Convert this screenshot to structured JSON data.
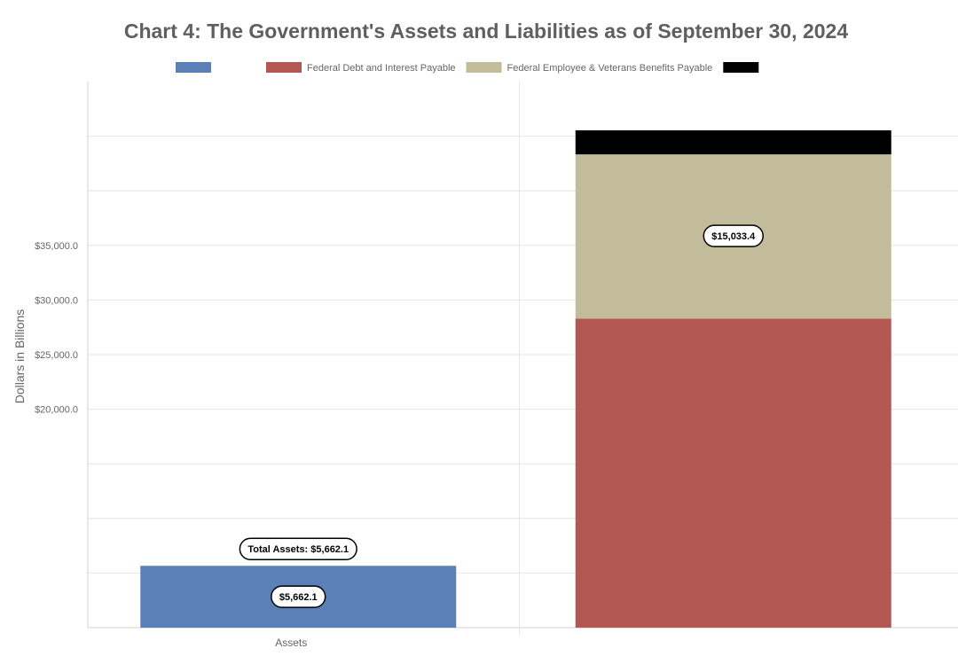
{
  "chart_data": {
    "type": "bar",
    "title": "Chart 4: The Government's Assets and Liabilities as of September 30, 2024",
    "ylabel": "Dollars in Billions",
    "xlabel": "",
    "ylim": [
      0,
      50000
    ],
    "y_ticks_shown": [
      20000,
      25000,
      30000,
      35000
    ],
    "y_tick_labels_shown": [
      "$20,000.0",
      "$25,000.0",
      "$30,000.0",
      "$35,000.0"
    ],
    "grid": true,
    "legend_position": "top",
    "categories": [
      "Assets",
      ""
    ],
    "legend": [
      {
        "name": "",
        "color": "#5b80b8"
      },
      {
        "name": "Federal Debt and Interest Payable",
        "color": "#b25752"
      },
      {
        "name": "Federal Employee & Veterans Benefits Payable",
        "color": "#c3bc9b"
      },
      {
        "name": "",
        "color": "#000000"
      }
    ],
    "series": [
      {
        "name": "",
        "color": "#5b80b8",
        "values": [
          5662.1,
          0
        ],
        "labels": [
          "$5,662.1",
          ""
        ]
      },
      {
        "name": "Federal Debt and Interest Payable",
        "color": "#b25752",
        "values": [
          0,
          28300
        ],
        "labels": [
          "",
          ""
        ]
      },
      {
        "name": "Federal Employee & Veterans Benefits Payable",
        "color": "#c3bc9b",
        "values": [
          0,
          15033.4
        ],
        "labels": [
          "",
          "$15,033.4"
        ]
      },
      {
        "name": "",
        "color": "#000000",
        "values": [
          0,
          2200
        ],
        "labels": [
          "",
          ""
        ]
      }
    ],
    "annotations": [
      {
        "text": "Total Assets: $5,662.1",
        "category": 0,
        "value": 5662.1
      }
    ]
  }
}
